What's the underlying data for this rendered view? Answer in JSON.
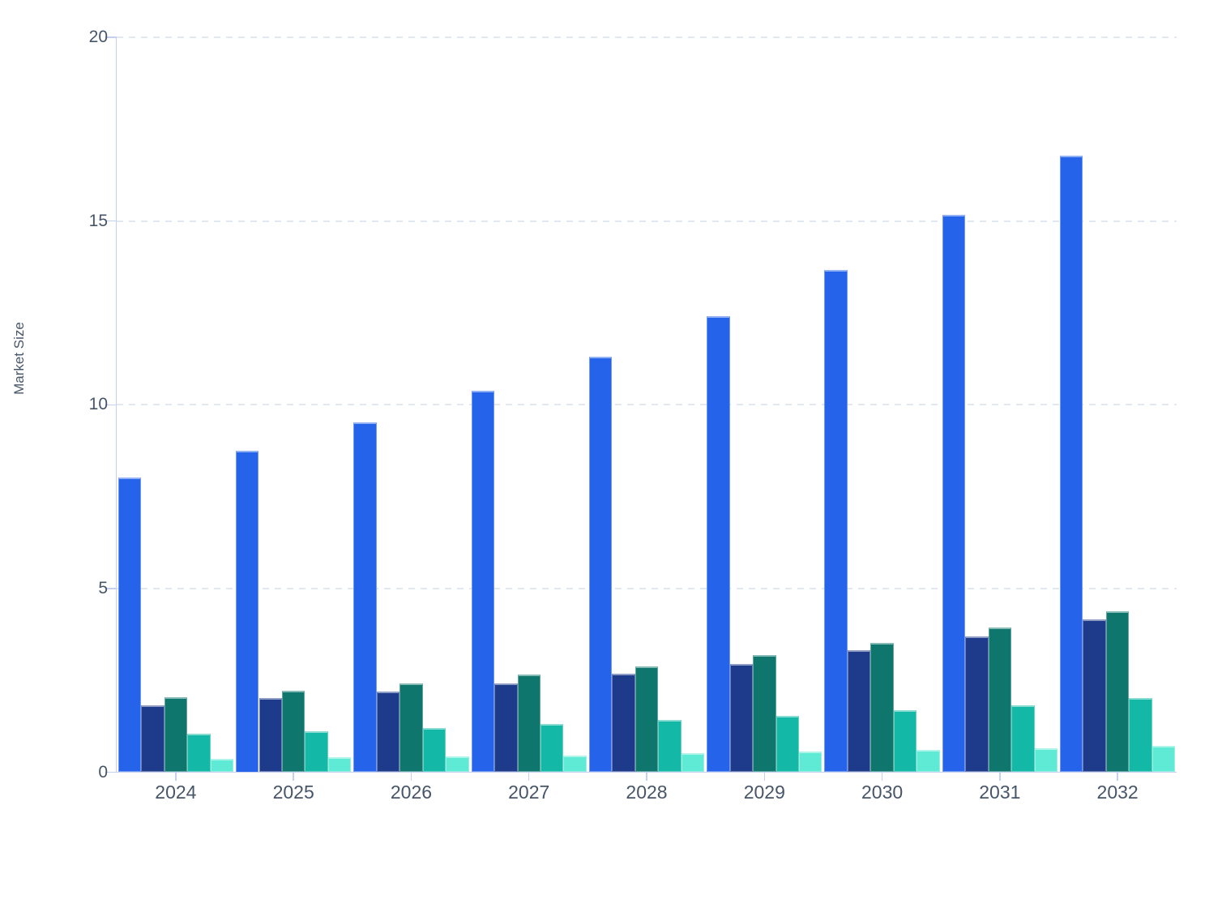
{
  "chart_data": {
    "type": "bar",
    "title": "",
    "ylabel": "Market Size",
    "xlabel": "",
    "categories": [
      "2024",
      "2025",
      "2026",
      "2027",
      "2028",
      "2029",
      "2030",
      "2031",
      "2032"
    ],
    "series": [
      {
        "name": "blue",
        "color": "#2563EB",
        "values": [
          8.03,
          8.75,
          9.52,
          10.38,
          11.31,
          12.4,
          13.66,
          15.17,
          16.78
        ]
      },
      {
        "name": "navy",
        "color": "#1E3A8A",
        "values": [
          1.83,
          2.01,
          2.2,
          2.42,
          2.69,
          2.94,
          3.31,
          3.69,
          4.15
        ]
      },
      {
        "name": "dark-teal",
        "color": "#0F766E",
        "values": [
          2.04,
          2.22,
          2.41,
          2.65,
          2.89,
          3.18,
          3.52,
          3.93,
          4.37
        ]
      },
      {
        "name": "teal",
        "color": "#14B8A6",
        "values": [
          1.04,
          1.12,
          1.21,
          1.31,
          1.42,
          1.53,
          1.68,
          1.83,
          2.01
        ]
      },
      {
        "name": "mint",
        "color": "#5EEAD4",
        "values": [
          0.37,
          0.41,
          0.44,
          0.46,
          0.51,
          0.56,
          0.6,
          0.64,
          0.71
        ]
      }
    ],
    "ylim": [
      0,
      20
    ],
    "yticks": [
      0,
      5,
      10,
      15,
      20
    ],
    "grid": true,
    "legend": false,
    "colors": {
      "axis": "#C5CFF0",
      "grid": "#E2E8F0",
      "text": "#475569"
    }
  }
}
